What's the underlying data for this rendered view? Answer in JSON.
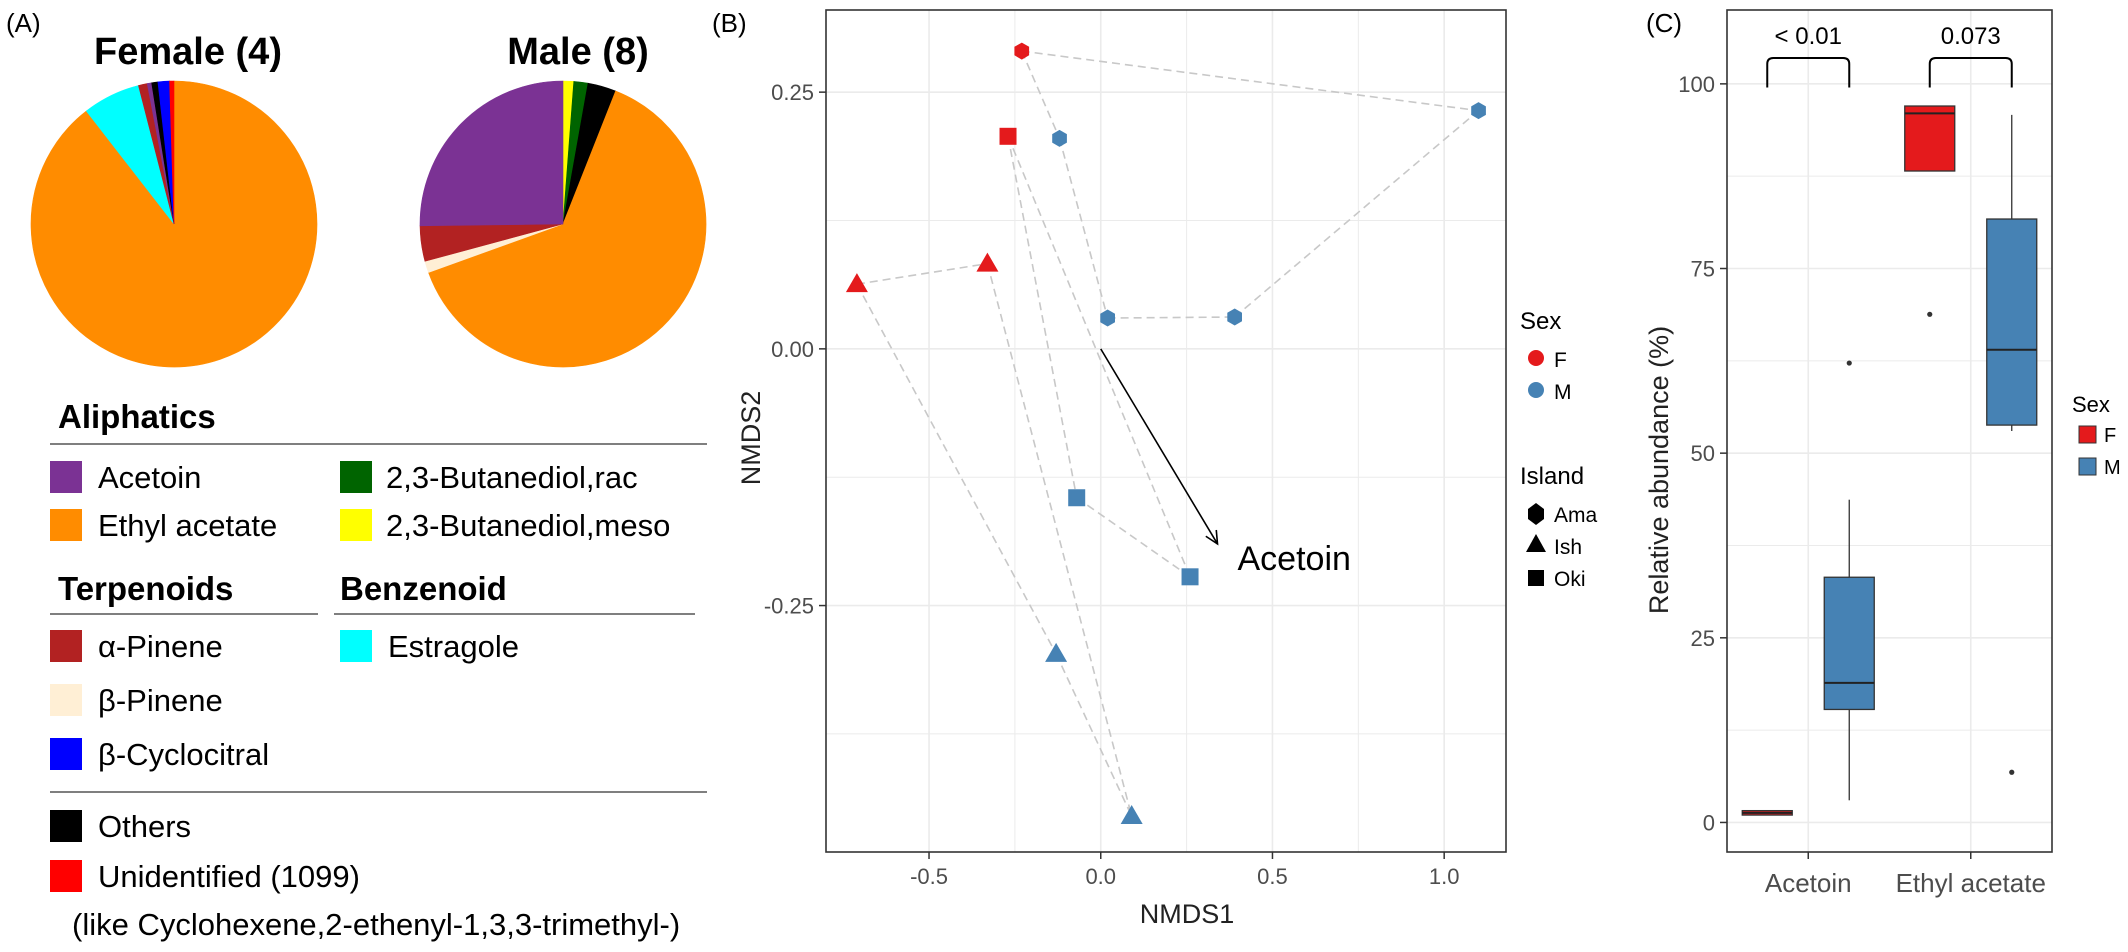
{
  "panel_labels": {
    "a": "(A)",
    "b": "(B)",
    "c": "(C)"
  },
  "colors": {
    "acetoin": "#7b3294",
    "ethyl_acetate": "#ff8c00",
    "butanediol_rac": "#006400",
    "butanediol_meso": "#ffff00",
    "alpha_pinene": "#b22222",
    "beta_pinene": "#ffefd5",
    "beta_cyclocitral": "#0000ff",
    "estragole": "#00ffff",
    "others": "#000000",
    "unidentified": "#ff0000",
    "female": "#e41a1c",
    "male": "#4682b4",
    "grid": "#ebebeb"
  },
  "legend_a": {
    "groups": {
      "aliphatics": "Aliphatics",
      "terpenoids": "Terpenoids",
      "benzenoid": "Benzenoid"
    },
    "items": {
      "acetoin": "Acetoin",
      "ethyl_acetate": "Ethyl acetate",
      "butanediol_rac": "2,3-Butanediol,rac",
      "butanediol_meso": "2,3-Butanediol,meso",
      "alpha_pinene": "α-Pinene",
      "beta_pinene": "β-Pinene",
      "beta_cyclocitral": "β-Cyclocitral",
      "estragole": "Estragole",
      "others": "Others",
      "unidentified": "Unidentified (1099)",
      "unidentified_note": "(like Cyclohexene,2-ethenyl-1,3,3-trimethyl-)"
    }
  },
  "chart_data": [
    {
      "type": "pie",
      "title": "Female (4)",
      "slices": [
        {
          "label": "Ethyl acetate",
          "key": "ethyl_acetate",
          "value": 89.5
        },
        {
          "label": "Estragole",
          "key": "estragole",
          "value": 6.5
        },
        {
          "label": "α-Pinene",
          "key": "alpha_pinene",
          "value": 1.0
        },
        {
          "label": "Acetoin",
          "key": "acetoin",
          "value": 0.5
        },
        {
          "label": "Others",
          "key": "others",
          "value": 0.7
        },
        {
          "label": "β-Cyclocitral",
          "key": "beta_cyclocitral",
          "value": 1.3
        },
        {
          "label": "Unidentified (1099)",
          "key": "unidentified",
          "value": 0.5
        }
      ]
    },
    {
      "type": "pie",
      "title": "Male (8)",
      "slices": [
        {
          "label": "2,3-Butanediol,meso",
          "key": "butanediol_meso",
          "value": 1.2
        },
        {
          "label": "2,3-Butanediol,rac",
          "key": "butanediol_rac",
          "value": 1.6
        },
        {
          "label": "Others",
          "key": "others",
          "value": 3.2
        },
        {
          "label": "Ethyl acetate",
          "key": "ethyl_acetate",
          "value": 63.5
        },
        {
          "label": "β-Pinene",
          "key": "beta_pinene",
          "value": 1.3
        },
        {
          "label": "α-Pinene",
          "key": "alpha_pinene",
          "value": 4.0
        },
        {
          "label": "Acetoin",
          "key": "acetoin",
          "value": 25.2
        }
      ]
    },
    {
      "type": "scatter",
      "xlabel": "NMDS1",
      "ylabel": "NMDS2",
      "xlim": [
        -0.8,
        1.18
      ],
      "ylim": [
        -0.49,
        0.33
      ],
      "xticks": [
        -0.5,
        0.0,
        0.5,
        1.0
      ],
      "yticks": [
        -0.25,
        0.0,
        0.25
      ],
      "xtick_labels": [
        "-0.5",
        "0.0",
        "0.5",
        "1.0"
      ],
      "ytick_labels": [
        "-0.25",
        "0.00",
        "0.25"
      ],
      "grid": true,
      "points": [
        {
          "x": -0.23,
          "y": 0.29,
          "sex": "F",
          "island": "Ama"
        },
        {
          "x": -0.27,
          "y": 0.207,
          "sex": "F",
          "island": "Oki"
        },
        {
          "x": -0.71,
          "y": 0.063,
          "sex": "F",
          "island": "Ish"
        },
        {
          "x": -0.33,
          "y": 0.083,
          "sex": "F",
          "island": "Ish"
        },
        {
          "x": 1.1,
          "y": 0.232,
          "sex": "M",
          "island": "Ama"
        },
        {
          "x": -0.12,
          "y": 0.205,
          "sex": "M",
          "island": "Ama"
        },
        {
          "x": 0.02,
          "y": 0.03,
          "sex": "M",
          "island": "Ama"
        },
        {
          "x": 0.39,
          "y": 0.031,
          "sex": "M",
          "island": "Ama"
        },
        {
          "x": -0.07,
          "y": -0.145,
          "sex": "M",
          "island": "Oki"
        },
        {
          "x": 0.26,
          "y": -0.222,
          "sex": "M",
          "island": "Oki"
        },
        {
          "x": -0.13,
          "y": -0.297,
          "sex": "M",
          "island": "Ish"
        },
        {
          "x": 0.09,
          "y": -0.455,
          "sex": "M",
          "island": "Ish"
        }
      ],
      "hull_edges": [
        [
          [
            -0.23,
            0.29
          ],
          [
            1.1,
            0.232
          ]
        ],
        [
          [
            -0.23,
            0.29
          ],
          [
            -0.12,
            0.205
          ]
        ],
        [
          [
            -0.12,
            0.205
          ],
          [
            0.02,
            0.03
          ]
        ],
        [
          [
            0.02,
            0.03
          ],
          [
            0.39,
            0.031
          ]
        ],
        [
          [
            0.39,
            0.031
          ],
          [
            1.1,
            0.232
          ]
        ],
        [
          [
            -0.27,
            0.207
          ],
          [
            -0.07,
            -0.145
          ]
        ],
        [
          [
            -0.27,
            0.207
          ],
          [
            0.26,
            -0.222
          ]
        ],
        [
          [
            -0.07,
            -0.145
          ],
          [
            0.26,
            -0.222
          ]
        ],
        [
          [
            -0.71,
            0.063
          ],
          [
            -0.33,
            0.083
          ]
        ],
        [
          [
            -0.71,
            0.063
          ],
          [
            -0.13,
            -0.297
          ]
        ],
        [
          [
            -0.33,
            0.083
          ],
          [
            0.09,
            -0.455
          ]
        ],
        [
          [
            -0.13,
            -0.297
          ],
          [
            0.09,
            -0.455
          ]
        ]
      ],
      "vector": {
        "label": "Acetoin",
        "from": [
          0.0,
          0.0
        ],
        "to": [
          0.34,
          -0.19
        ]
      },
      "legend_sex": {
        "title": "Sex",
        "items": [
          "F",
          "M"
        ]
      },
      "legend_island": {
        "title": "Island",
        "items": [
          "Ama",
          "Ish",
          "Oki"
        ]
      }
    },
    {
      "type": "box",
      "ylabel": "Relative abundance (%)",
      "categories": [
        "Acetoin",
        "Ethyl acetate"
      ],
      "ylim": [
        -4,
        110
      ],
      "yticks": [
        0,
        25,
        50,
        75,
        100
      ],
      "ytick_labels": [
        "0",
        "25",
        "50",
        "75",
        "100"
      ],
      "grid": true,
      "groups": [
        {
          "category": "Acetoin",
          "sex": "F",
          "min": 1.0,
          "q1": 1.0,
          "median": 1.3,
          "q3": 1.6,
          "max": 1.6,
          "outliers": []
        },
        {
          "category": "Acetoin",
          "sex": "M",
          "min": 3.0,
          "q1": 15.3,
          "median": 18.9,
          "q3": 33.2,
          "max": 43.7,
          "outliers": [
            62.2
          ]
        },
        {
          "category": "Ethyl acetate",
          "sex": "F",
          "min": 88.2,
          "q1": 88.2,
          "median": 96.0,
          "q3": 97.0,
          "max": 97.0,
          "outliers": [
            68.8
          ]
        },
        {
          "category": "Ethyl acetate",
          "sex": "M",
          "min": 53.0,
          "q1": 53.8,
          "median": 64.0,
          "q3": 81.7,
          "max": 95.8,
          "outliers": [
            6.8
          ]
        }
      ],
      "pvalues": [
        {
          "category": "Acetoin",
          "label": "< 0.01"
        },
        {
          "category": "Ethyl acetate",
          "label": "0.073"
        }
      ],
      "legend": {
        "title": "Sex",
        "items": [
          "F",
          "M"
        ]
      }
    }
  ]
}
